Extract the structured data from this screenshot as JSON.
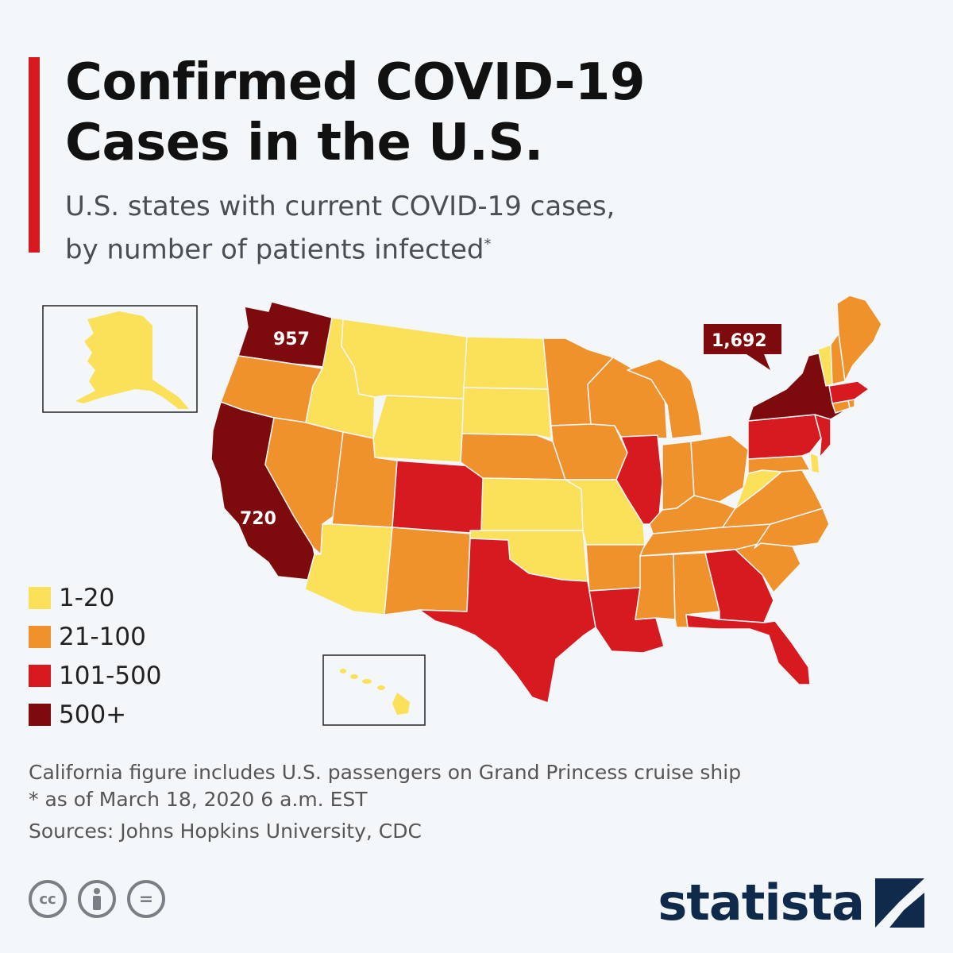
{
  "header": {
    "title_line1": "Confirmed COVID-19",
    "title_line2": "Cases in the U.S.",
    "subtitle_line1": "U.S. states with current COVID-19 cases,",
    "subtitle_line2": "by number of patients infected",
    "subtitle_marker": "*"
  },
  "colors": {
    "accent": "#d71920",
    "c1_20": "#fbe05a",
    "c21_100": "#f0922c",
    "c101_500": "#d71920",
    "c500": "#7d0b0e"
  },
  "callouts": {
    "washington": "957",
    "new_york": "1,692",
    "california": "720"
  },
  "legend": [
    {
      "label": "1-20",
      "color": "#fbe05a"
    },
    {
      "label": "21-100",
      "color": "#f0922c"
    },
    {
      "label": "101-500",
      "color": "#d71920"
    },
    {
      "label": "500+",
      "color": "#7d0b0e"
    }
  ],
  "footer": {
    "note1": "California figure includes U.S. passengers on Grand Princess cruise ship",
    "note2": "* as of March 18, 2020 6 a.m. EST",
    "sources": "Sources: Johns Hopkins University, CDC",
    "license_icons": [
      "cc-icon",
      "attribution-icon",
      "no-derivatives-icon"
    ],
    "license_cc": "cc",
    "license_nd": "=",
    "brand": "statista"
  }
}
